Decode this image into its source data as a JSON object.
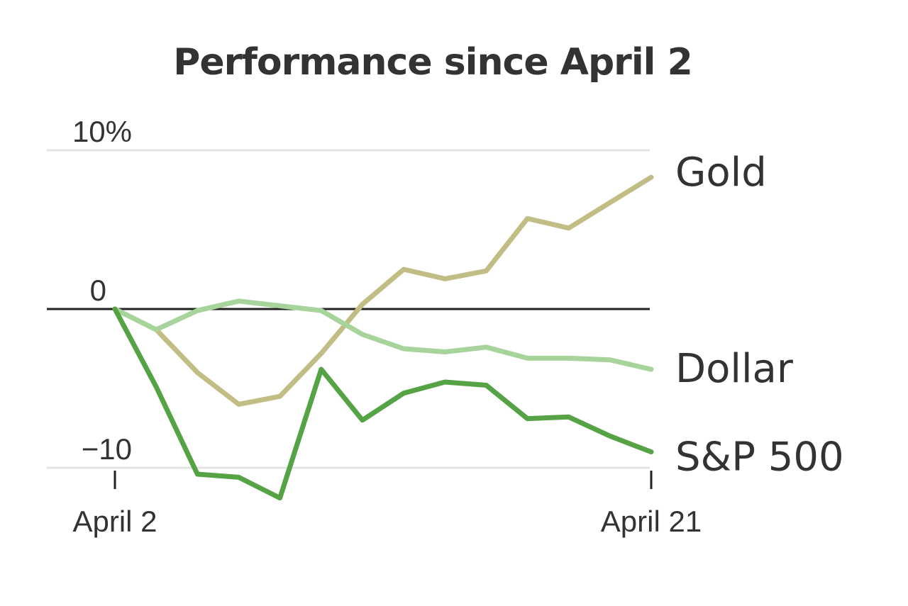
{
  "chart_data": {
    "type": "line",
    "title": "Performance since April 2",
    "xlabel": "",
    "ylabel": "",
    "ylim": [
      -10,
      10
    ],
    "yticks": [
      {
        "value": 10,
        "label": "10%"
      },
      {
        "value": 0,
        "label": "0"
      },
      {
        "value": -10,
        "label": "−10"
      }
    ],
    "xticks": [
      {
        "index": 0,
        "label": "April 2"
      },
      {
        "index": 13,
        "label": "April 21"
      }
    ],
    "series": [
      {
        "name": "Gold",
        "label": "Gold",
        "color": "#c2bd85",
        "values": [
          0,
          -1.3,
          -4.0,
          -6.0,
          -5.5,
          -2.8,
          0.3,
          2.5,
          1.9,
          2.4,
          5.7,
          5.1,
          6.7,
          8.3
        ]
      },
      {
        "name": "Dollar",
        "label": "Dollar",
        "color": "#a6d49a",
        "values": [
          0,
          -1.3,
          -0.1,
          0.5,
          0.2,
          -0.1,
          -1.6,
          -2.5,
          -2.7,
          -2.4,
          -3.1,
          -3.1,
          -3.2,
          -3.8
        ]
      },
      {
        "name": "S&P 500",
        "label": "S&P 500",
        "color": "#56a345",
        "values": [
          0,
          -4.9,
          -10.4,
          -10.6,
          -11.9,
          -3.8,
          -7.0,
          -5.3,
          -4.6,
          -4.8,
          -6.9,
          -6.8,
          -8.0,
          -9.0
        ]
      }
    ]
  }
}
